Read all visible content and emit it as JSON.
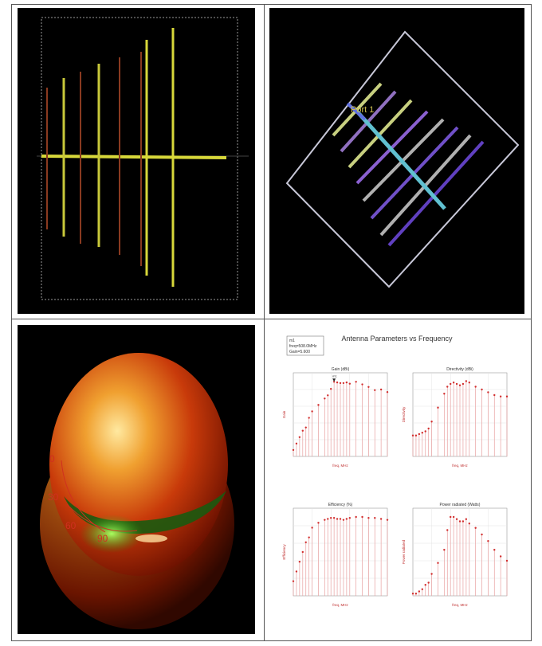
{
  "panel_tr": {
    "port_label": "Port 1"
  },
  "panel_bl": {
    "angles": [
      "0",
      "30",
      "60",
      "90"
    ]
  },
  "panel_br": {
    "title": "Antenna Parameters vs Frequency",
    "marker": {
      "line1": "m1",
      "line2": "freq=508.0MHz",
      "line3": "Gain=5.600",
      "tag": "m1"
    },
    "colors": {
      "stem": "#e8a0a0",
      "point": "#d23030"
    },
    "subplots": [
      {
        "title": "Gain (dBi)",
        "ylabel": "Gain",
        "xlabel": "freq, MHz"
      },
      {
        "title": "Directivity (dBi)",
        "ylabel": "Directivity",
        "xlabel": "freq, MHz"
      },
      {
        "title": "Efficiency (%)",
        "ylabel": "Efficiency",
        "xlabel": "freq, MHz"
      },
      {
        "title": "Power radiated (Watts)",
        "ylabel": "Power radiated",
        "xlabel": "freq, MHz"
      }
    ]
  },
  "chart_data": [
    {
      "type": "scatter",
      "title": "Gain (dBi)",
      "xlabel": "freq, MHz",
      "ylabel": "Gain",
      "x": [
        300,
        310,
        320,
        330,
        340,
        350,
        360,
        380,
        400,
        410,
        420,
        430,
        440,
        450,
        460,
        470,
        480,
        500,
        520,
        540,
        560,
        580,
        600
      ],
      "y": [
        -5,
        -4,
        -3,
        -2,
        -1.5,
        0,
        1,
        2,
        3,
        3.5,
        4.5,
        5.6,
        5.5,
        5.4,
        5.4,
        5.5,
        5.3,
        5.6,
        5.2,
        4.8,
        4.3,
        4.4,
        4.0
      ],
      "ylim": [
        -6,
        7
      ]
    },
    {
      "type": "scatter",
      "title": "Directivity (dBi)",
      "xlabel": "freq, MHz",
      "ylabel": "Directivity",
      "x": [
        300,
        310,
        320,
        330,
        340,
        350,
        360,
        380,
        400,
        410,
        420,
        430,
        440,
        450,
        460,
        470,
        480,
        500,
        520,
        540,
        560,
        580,
        600
      ],
      "y": [
        2.5,
        2.5,
        2.6,
        2.7,
        2.8,
        3.0,
        3.5,
        4.5,
        5.5,
        6.0,
        6.2,
        6.3,
        6.2,
        6.1,
        6.2,
        6.4,
        6.3,
        6.0,
        5.8,
        5.6,
        5.4,
        5.3,
        5.3
      ],
      "ylim": [
        1,
        7
      ]
    },
    {
      "type": "scatter",
      "title": "Efficiency (%)",
      "xlabel": "freq, MHz",
      "ylabel": "Efficiency",
      "x": [
        300,
        310,
        320,
        330,
        340,
        350,
        360,
        380,
        400,
        410,
        420,
        430,
        440,
        450,
        460,
        470,
        480,
        500,
        520,
        540,
        560,
        580,
        600
      ],
      "y": [
        15,
        25,
        35,
        45,
        55,
        60,
        70,
        75,
        78,
        79,
        80,
        80,
        79,
        79,
        78,
        79,
        80,
        81,
        81,
        80,
        80,
        79,
        78
      ],
      "ylim": [
        0,
        90
      ]
    },
    {
      "type": "scatter",
      "title": "Power radiated (Watts)",
      "xlabel": "freq, MHz",
      "ylabel": "Power radiated",
      "x": [
        300,
        310,
        320,
        330,
        340,
        350,
        360,
        380,
        400,
        410,
        420,
        430,
        440,
        450,
        460,
        470,
        480,
        500,
        520,
        540,
        560,
        580,
        600
      ],
      "y": [
        0.001,
        0.001,
        0.002,
        0.003,
        0.005,
        0.006,
        0.01,
        0.015,
        0.021,
        0.03,
        0.036,
        0.036,
        0.035,
        0.034,
        0.034,
        0.035,
        0.033,
        0.031,
        0.028,
        0.025,
        0.021,
        0.018,
        0.016
      ],
      "ylim": [
        0,
        0.04
      ]
    }
  ]
}
